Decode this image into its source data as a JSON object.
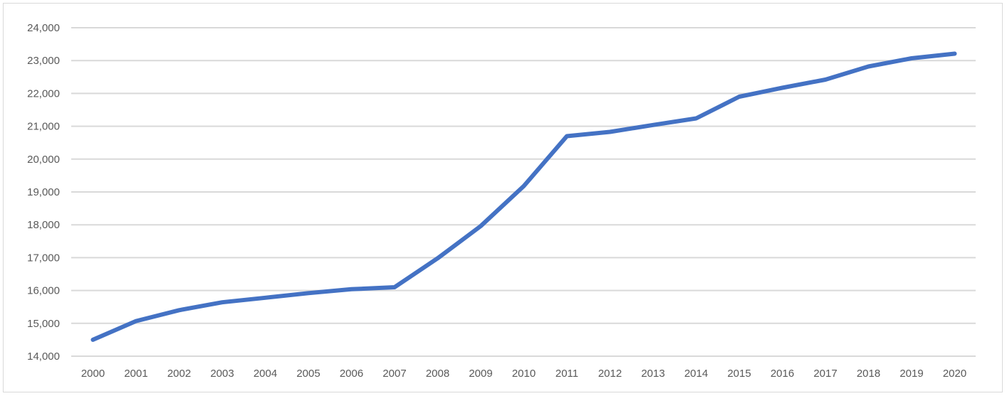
{
  "chart_data": {
    "type": "line",
    "title": "",
    "xlabel": "",
    "ylabel": "",
    "x": [
      "2000",
      "2001",
      "2002",
      "2003",
      "2004",
      "2005",
      "2006",
      "2007",
      "2008",
      "2009",
      "2010",
      "2011",
      "2012",
      "2013",
      "2014",
      "2015",
      "2016",
      "2017",
      "2018",
      "2019",
      "2020"
    ],
    "series": [
      {
        "values": [
          14500,
          15070,
          15400,
          15640,
          15780,
          15920,
          16040,
          16100,
          16980,
          17960,
          19180,
          20700,
          20830,
          21040,
          21240,
          21900,
          22170,
          22420,
          22820,
          23070,
          23210
        ],
        "color": "#4472c4"
      }
    ],
    "ylim": [
      14000,
      24000
    ],
    "y_ticks": [
      "14,000",
      "15,000",
      "16,000",
      "17,000",
      "18,000",
      "19,000",
      "20,000",
      "21,000",
      "22,000",
      "23,000",
      "24,000"
    ],
    "y_tick_values": [
      14000,
      15000,
      16000,
      17000,
      18000,
      19000,
      20000,
      21000,
      22000,
      23000,
      24000
    ],
    "grid": true,
    "legend": "none"
  }
}
